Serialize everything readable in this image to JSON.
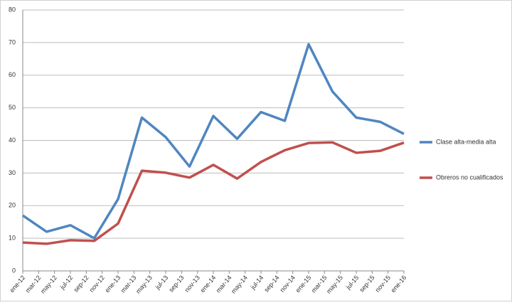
{
  "chart_data": {
    "type": "line",
    "x": [
      0,
      3,
      6,
      9,
      12,
      15,
      18,
      21,
      24,
      27,
      30,
      33,
      36,
      39,
      42,
      45,
      48
    ],
    "xlim": [
      0,
      48
    ],
    "xticks": [
      {
        "value": 0,
        "label": "ene-12"
      },
      {
        "value": 2,
        "label": "mar-12"
      },
      {
        "value": 4,
        "label": "may-12"
      },
      {
        "value": 6,
        "label": "jul-12"
      },
      {
        "value": 8,
        "label": "sep-12"
      },
      {
        "value": 10,
        "label": "nov-12"
      },
      {
        "value": 12,
        "label": "ene-13"
      },
      {
        "value": 14,
        "label": "mar-13"
      },
      {
        "value": 16,
        "label": "may-13"
      },
      {
        "value": 18,
        "label": "jul-13"
      },
      {
        "value": 20,
        "label": "sep-13"
      },
      {
        "value": 22,
        "label": "nov-13"
      },
      {
        "value": 24,
        "label": "ene-14"
      },
      {
        "value": 26,
        "label": "mar-14"
      },
      {
        "value": 28,
        "label": "may-14"
      },
      {
        "value": 30,
        "label": "jul-14"
      },
      {
        "value": 32,
        "label": "sep-14"
      },
      {
        "value": 34,
        "label": "nov-14"
      },
      {
        "value": 36,
        "label": "ene-15"
      },
      {
        "value": 38,
        "label": "mar-15"
      },
      {
        "value": 40,
        "label": "may-15"
      },
      {
        "value": 42,
        "label": "jul-15"
      },
      {
        "value": 44,
        "label": "sep-15"
      },
      {
        "value": 46,
        "label": "nov-15"
      },
      {
        "value": 48,
        "label": "ene-16"
      }
    ],
    "ylim": [
      0,
      80
    ],
    "yticks": [
      0,
      10,
      20,
      30,
      40,
      50,
      60,
      70,
      80
    ],
    "grid": true,
    "legend": "right",
    "series": [
      {
        "name": "Clase alta-media alta",
        "color": "#4f86c1",
        "values": [
          17,
          12,
          14,
          10,
          22,
          47,
          41,
          32,
          47.5,
          40.5,
          48.7,
          46,
          69.5,
          55,
          47,
          45.7,
          42
        ]
      },
      {
        "name": "Obreros no cualificados",
        "color": "#c0504d",
        "values": [
          8.7,
          8.3,
          9.4,
          9.2,
          14.5,
          30.7,
          30.1,
          28.6,
          32.5,
          28.3,
          33.4,
          37,
          39.2,
          39.4,
          36.2,
          36.8,
          39.3
        ]
      }
    ]
  }
}
